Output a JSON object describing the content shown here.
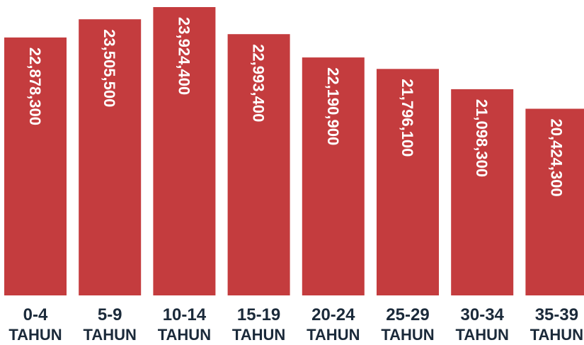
{
  "chart_data": {
    "type": "bar",
    "categories": [
      [
        "0-4",
        "TAHUN"
      ],
      [
        "5-9",
        "TAHUN"
      ],
      [
        "10-14",
        "TAHUN"
      ],
      [
        "15-19",
        "TAHUN"
      ],
      [
        "20-24",
        "TAHUN"
      ],
      [
        "25-29",
        "TAHUN"
      ],
      [
        "30-34",
        "TAHUN"
      ],
      [
        "35-39",
        "TAHUN"
      ]
    ],
    "values": [
      22878300,
      23505500,
      23924400,
      22993400,
      22190900,
      21796100,
      21098300,
      20424300
    ],
    "value_labels": [
      "22,878,300",
      "23,505,500",
      "23,924,400",
      "22,993,400",
      "22,190,900",
      "21,796,100",
      "21,098,300",
      "20,424,300"
    ],
    "bar_color": "#c43c3e",
    "label_color": "#ffffff",
    "tick_color": "#1b2a3a",
    "grid": false,
    "legend": "none"
  }
}
